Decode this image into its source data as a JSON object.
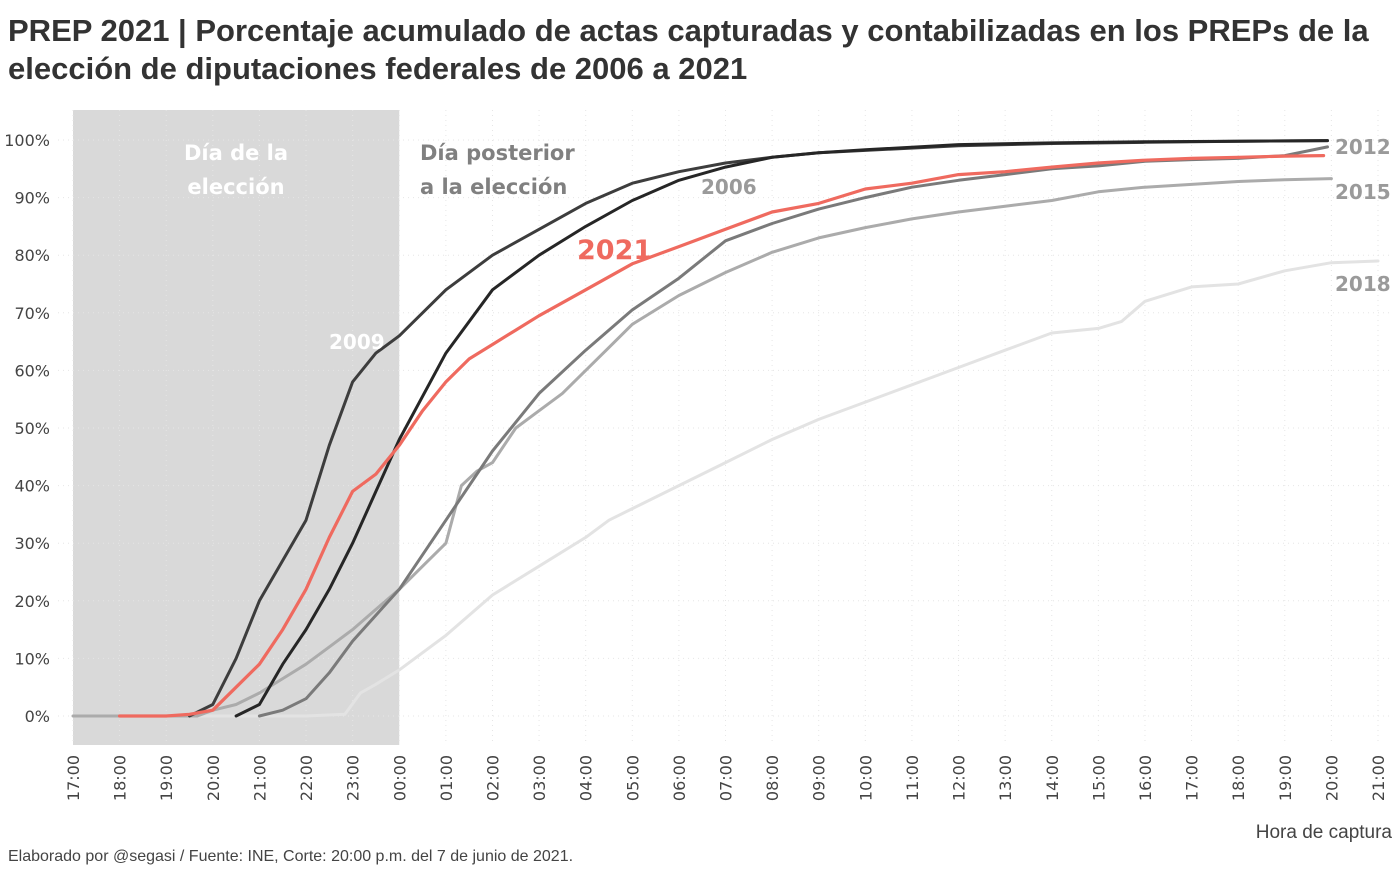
{
  "title": "PREP 2021 | Porcentaje acumulado de actas capturadas y contabilizadas en los PREPs de la elección de diputaciones federales de 2006 a 2021",
  "footer": "Elaborado por @segasi / Fuente: INE, Corte: 20:00 p.m. del 7 de junio de 2021.",
  "chart_data": {
    "type": "line",
    "title": "PREP 2021 | Porcentaje acumulado de actas capturadas y contabilizadas en los PREPs de la elección de diputaciones federales de 2006 a 2021",
    "xlabel": "Hora de captura",
    "ylabel": "",
    "x_ticks": [
      "17:00",
      "18:00",
      "19:00",
      "20:00",
      "21:00",
      "22:00",
      "23:00",
      "00:00",
      "01:00",
      "02:00",
      "03:00",
      "04:00",
      "05:00",
      "06:00",
      "07:00",
      "08:00",
      "09:00",
      "10:00",
      "11:00",
      "12:00",
      "13:00",
      "14:00",
      "15:00",
      "16:00",
      "17:00",
      "18:00",
      "19:00",
      "20:00",
      "21:00"
    ],
    "y_ticks": [
      "0%",
      "10%",
      "20%",
      "30%",
      "40%",
      "50%",
      "60%",
      "70%",
      "80%",
      "90%",
      "100%"
    ],
    "ylim": [
      0,
      100
    ],
    "grid": true,
    "annotations": {
      "shaded_region": {
        "from": "17:00",
        "to": "00:00",
        "label": "Día de la elección",
        "color": "#d9d9d9"
      },
      "after_label": "Día posterior a la elección"
    },
    "series": [
      {
        "name": "2018",
        "color": "#e3e3e3",
        "x": [
          "19:40",
          "20:00",
          "21:00",
          "22:00",
          "22:50",
          "23:10",
          "23:30",
          "00:00",
          "01:00",
          "02:00",
          "03:00",
          "04:00",
          "04:30",
          "05:00",
          "06:00",
          "07:00",
          "08:00",
          "09:00",
          "10:00",
          "11:00",
          "12:00",
          "13:00",
          "14:00",
          "15:00",
          "15:30",
          "16:00",
          "17:00",
          "18:00",
          "19:00",
          "20:00",
          "21:00"
        ],
        "y": [
          0,
          0,
          0,
          0,
          0.3,
          4,
          5.5,
          8,
          14,
          21,
          26,
          31,
          34,
          36,
          40,
          44,
          48,
          51.5,
          54.5,
          57.5,
          60.5,
          63.5,
          66.5,
          67.3,
          68.5,
          72,
          74.5,
          75,
          77.3,
          78.7,
          79
        ]
      },
      {
        "name": "2015",
        "color": "#ababab",
        "x": [
          "17:00",
          "18:00",
          "19:00",
          "19:40",
          "20:00",
          "20:30",
          "21:00",
          "21:30",
          "22:00",
          "22:30",
          "23:00",
          "23:30",
          "00:00",
          "00:30",
          "01:00",
          "01:20",
          "01:40",
          "02:00",
          "02:30",
          "03:00",
          "03:30",
          "04:00",
          "04:30",
          "05:00",
          "06:00",
          "07:00",
          "08:00",
          "09:00",
          "10:00",
          "11:00",
          "12:00",
          "13:00",
          "14:00",
          "15:00",
          "16:00",
          "17:00",
          "18:00",
          "19:00",
          "20:00"
        ],
        "y": [
          0,
          0,
          0,
          0,
          1,
          2,
          4,
          6.5,
          9,
          12,
          15,
          18.5,
          22,
          26,
          30,
          40,
          42.5,
          44,
          50,
          53,
          56,
          60,
          64,
          68,
          73,
          77,
          80.5,
          83,
          84.8,
          86.3,
          87.5,
          88.5,
          89.5,
          91,
          91.8,
          92.3,
          92.8,
          93.1,
          93.3
        ]
      },
      {
        "name": "2012",
        "color": "#7a7a7a",
        "x": [
          "21:00",
          "21:30",
          "22:00",
          "22:30",
          "23:00",
          "23:30",
          "00:00",
          "01:00",
          "02:00",
          "03:00",
          "04:00",
          "05:00",
          "06:00",
          "07:00",
          "08:00",
          "09:00",
          "10:00",
          "11:00",
          "12:00",
          "13:00",
          "14:00",
          "15:00",
          "16:00",
          "17:00",
          "18:00",
          "19:00",
          "19:55"
        ],
        "y": [
          0,
          1,
          3,
          7.5,
          13,
          17.5,
          22,
          34,
          46,
          56,
          63.5,
          70.5,
          76,
          82.5,
          85.5,
          88,
          90,
          91.8,
          93,
          94,
          95,
          95.5,
          96.3,
          96.6,
          96.8,
          97.3,
          98.8
        ]
      },
      {
        "name": "2009",
        "color": "#3d3d3d",
        "x": [
          "19:30",
          "20:00",
          "20:30",
          "21:00",
          "21:30",
          "22:00",
          "22:30",
          "23:00",
          "23:30",
          "00:00",
          "01:00",
          "02:00",
          "03:00",
          "04:00",
          "05:00",
          "06:00",
          "07:00",
          "08:00",
          "09:00",
          "10:00",
          "12:00",
          "14:00",
          "16:00",
          "18:00",
          "19:55"
        ],
        "y": [
          0,
          2,
          10,
          20,
          27,
          34,
          47,
          58,
          63,
          66,
          74,
          80,
          84.5,
          89,
          92.5,
          94.5,
          96,
          97,
          97.8,
          98.2,
          99,
          99.4,
          99.6,
          99.8,
          99.9
        ]
      },
      {
        "name": "2006",
        "color": "#262626",
        "x": [
          "20:30",
          "21:00",
          "21:30",
          "22:00",
          "22:30",
          "23:00",
          "23:30",
          "00:00",
          "01:00",
          "02:00",
          "03:00",
          "04:00",
          "05:00",
          "06:00",
          "07:00",
          "08:00",
          "09:00",
          "10:00",
          "12:00",
          "14:00",
          "16:00",
          "18:00",
          "19:55"
        ],
        "y": [
          0,
          2,
          9,
          15,
          22,
          30,
          39,
          48,
          63,
          74,
          80,
          85,
          89.5,
          93,
          95.3,
          97,
          97.8,
          98.3,
          99.2,
          99.5,
          99.7,
          99.8,
          99.9
        ]
      },
      {
        "name": "2021",
        "color": "#ef6a5f",
        "x": [
          "18:00",
          "19:00",
          "19:30",
          "20:00",
          "20:30",
          "21:00",
          "21:30",
          "22:00",
          "22:30",
          "23:00",
          "23:30",
          "00:00",
          "00:30",
          "01:00",
          "01:30",
          "02:00",
          "02:30",
          "03:00",
          "04:00",
          "05:00",
          "06:00",
          "07:00",
          "08:00",
          "09:00",
          "10:00",
          "11:00",
          "12:00",
          "13:00",
          "14:00",
          "15:00",
          "16:00",
          "17:00",
          "18:00",
          "19:00",
          "19:50"
        ],
        "y": [
          0,
          0,
          0.3,
          1,
          5,
          9,
          15,
          22,
          31,
          39,
          42,
          47,
          53,
          58,
          62,
          64.5,
          67,
          69.5,
          74,
          78.5,
          81.5,
          84.5,
          87.5,
          89,
          91.5,
          92.5,
          94,
          94.5,
          95.3,
          96,
          96.5,
          96.8,
          97,
          97.2,
          97.3
        ]
      }
    ]
  }
}
